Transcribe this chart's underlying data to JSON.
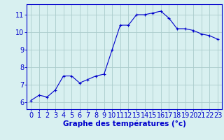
{
  "x": [
    0,
    1,
    2,
    3,
    4,
    5,
    6,
    7,
    8,
    9,
    10,
    11,
    12,
    13,
    14,
    15,
    16,
    17,
    18,
    19,
    20,
    21,
    22,
    23
  ],
  "y": [
    6.1,
    6.4,
    6.3,
    6.7,
    7.5,
    7.5,
    7.1,
    7.3,
    7.5,
    7.6,
    9.0,
    10.4,
    10.4,
    11.0,
    11.0,
    11.1,
    11.2,
    10.8,
    10.2,
    10.2,
    10.1,
    9.9,
    9.8,
    9.6
  ],
  "line_color": "#0000cc",
  "marker": "+",
  "bg_color": "#d8f0f0",
  "grid_color": "#aacccc",
  "axis_color": "#0000cc",
  "xlabel": "Graphe des températures (°c)",
  "xlabel_fontsize": 7.5,
  "tick_fontsize": 7,
  "ylabel_ticks": [
    6,
    7,
    8,
    9,
    10,
    11
  ],
  "xlim": [
    -0.5,
    23.5
  ],
  "ylim": [
    5.6,
    11.6
  ],
  "xticks": [
    0,
    1,
    2,
    3,
    4,
    5,
    6,
    7,
    8,
    9,
    10,
    11,
    12,
    13,
    14,
    15,
    16,
    17,
    18,
    19,
    20,
    21,
    22,
    23
  ]
}
